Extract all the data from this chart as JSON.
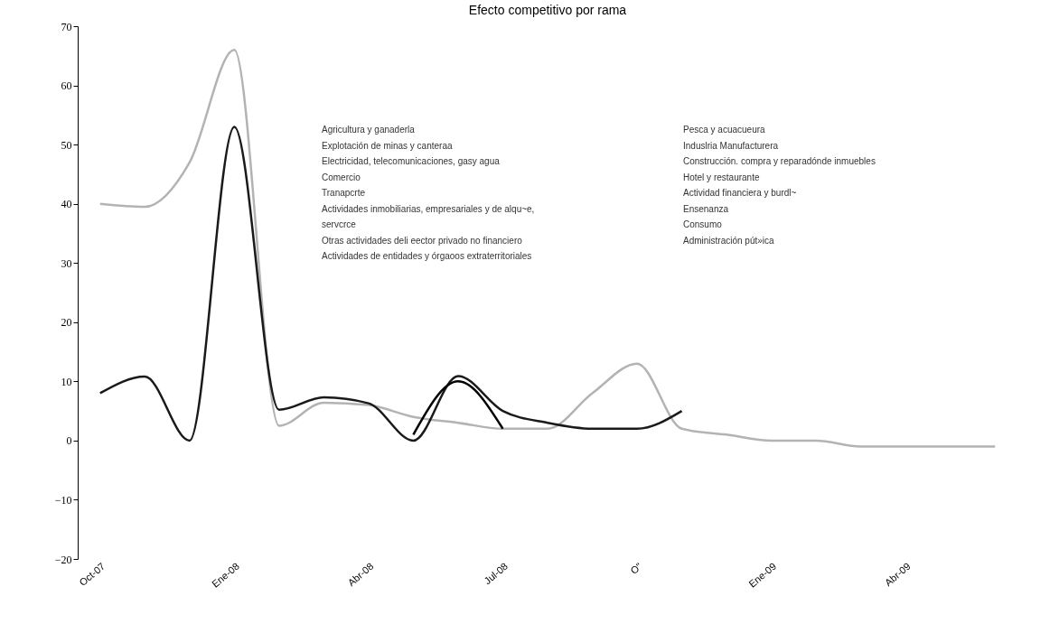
{
  "chart_data": {
    "type": "line",
    "title": "Efecto competitivo por rama",
    "categories": [
      "Oct-07",
      null,
      null,
      "Ene-08",
      null,
      null,
      "Abr-08",
      null,
      null,
      "Jul-08",
      null,
      null,
      "O\"",
      null,
      null,
      "Ene-09",
      null,
      null,
      "Abr-09",
      null,
      null
    ],
    "series": [
      {
        "color": "#b3b3b3",
        "values": [
          40,
          39.5,
          47,
          66,
          2.5,
          6.4,
          6,
          4,
          3,
          2,
          2,
          8,
          13,
          2,
          1,
          0,
          0,
          -1,
          -1,
          -1,
          -1
        ]
      },
      {
        "color": "#1a1a1a",
        "values": [
          8,
          10.8,
          0,
          53,
          5.2,
          7.3,
          6.3,
          0,
          10.9,
          5,
          3,
          2,
          2,
          5,
          null,
          null,
          null,
          null,
          null,
          null,
          null
        ]
      },
      {
        "color": "#000000",
        "values": [
          null,
          null,
          null,
          null,
          null,
          null,
          null,
          1,
          10,
          2,
          null,
          null,
          null,
          null,
          null,
          null,
          null,
          null,
          null,
          null,
          null
        ]
      }
    ],
    "ylim": [
      -20,
      70
    ],
    "yticks": [
      -20,
      -10,
      0,
      10,
      20,
      30,
      40,
      50,
      60,
      70
    ],
    "grid": false,
    "annotations": [
      "Agricultura y ganaderla",
      "Explotación de minas y canteraa",
      "Electricidad, telecomunicaciones, gasy agua",
      "Comercio",
      "Tranapcrte",
      "Actividades inmobiliarias, empresariales y de alqu~e,",
      "servcrce",
      "Otras actividades deli eector privado no financiero",
      "Actividades de entidades y órgaoos extraterritoriales",
      "Pesca y acuacueura",
      "Induslria Manufacturera",
      "Construcción. compra y reparadónde inmuebles",
      "Hotel y restaurante",
      "Actividad financiera y burdl~",
      "Ensenanza",
      "Consumo",
      "Administración pút»ica"
    ]
  }
}
